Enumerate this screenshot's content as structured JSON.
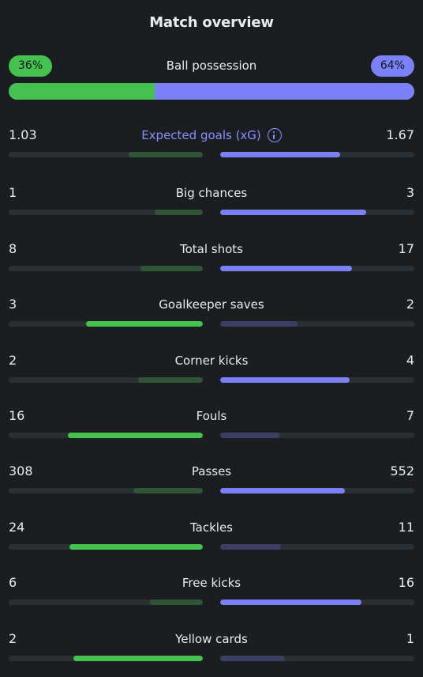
{
  "title": "Match overview",
  "possession": {
    "label": "Ball possession",
    "home_label": "36%",
    "away_label": "64%",
    "home_fraction": 0.36,
    "away_fraction": 0.64
  },
  "colors": {
    "background": "#1b1e21",
    "home": "#45c150",
    "home_muted": "#2f5436",
    "away": "#7a81fb",
    "away_muted": "#3b3f63",
    "track": "#2a2f33",
    "text": "#e9ecef",
    "accent_text": "#8a90ff"
  },
  "stats": [
    {
      "key": "xg",
      "label": "Expected goals (xG)",
      "home": "1.03",
      "away": "1.67",
      "home_value": 1.03,
      "away_value": 1.67,
      "accent": true,
      "icon": "info-icon"
    },
    {
      "key": "big-chances",
      "label": "Big chances",
      "home": "1",
      "away": "3",
      "home_value": 1,
      "away_value": 3
    },
    {
      "key": "total-shots",
      "label": "Total shots",
      "home": "8",
      "away": "17",
      "home_value": 8,
      "away_value": 17
    },
    {
      "key": "goalkeeper-saves",
      "label": "Goalkeeper saves",
      "home": "3",
      "away": "2",
      "home_value": 3,
      "away_value": 2
    },
    {
      "key": "corner-kicks",
      "label": "Corner kicks",
      "home": "2",
      "away": "4",
      "home_value": 2,
      "away_value": 4
    },
    {
      "key": "fouls",
      "label": "Fouls",
      "home": "16",
      "away": "7",
      "home_value": 16,
      "away_value": 7
    },
    {
      "key": "passes",
      "label": "Passes",
      "home": "308",
      "away": "552",
      "home_value": 308,
      "away_value": 552
    },
    {
      "key": "tackles",
      "label": "Tackles",
      "home": "24",
      "away": "11",
      "home_value": 24,
      "away_value": 11
    },
    {
      "key": "free-kicks",
      "label": "Free kicks",
      "home": "6",
      "away": "16",
      "home_value": 6,
      "away_value": 16
    },
    {
      "key": "yellow-cards",
      "label": "Yellow cards",
      "home": "2",
      "away": "1",
      "home_value": 2,
      "away_value": 1
    }
  ]
}
